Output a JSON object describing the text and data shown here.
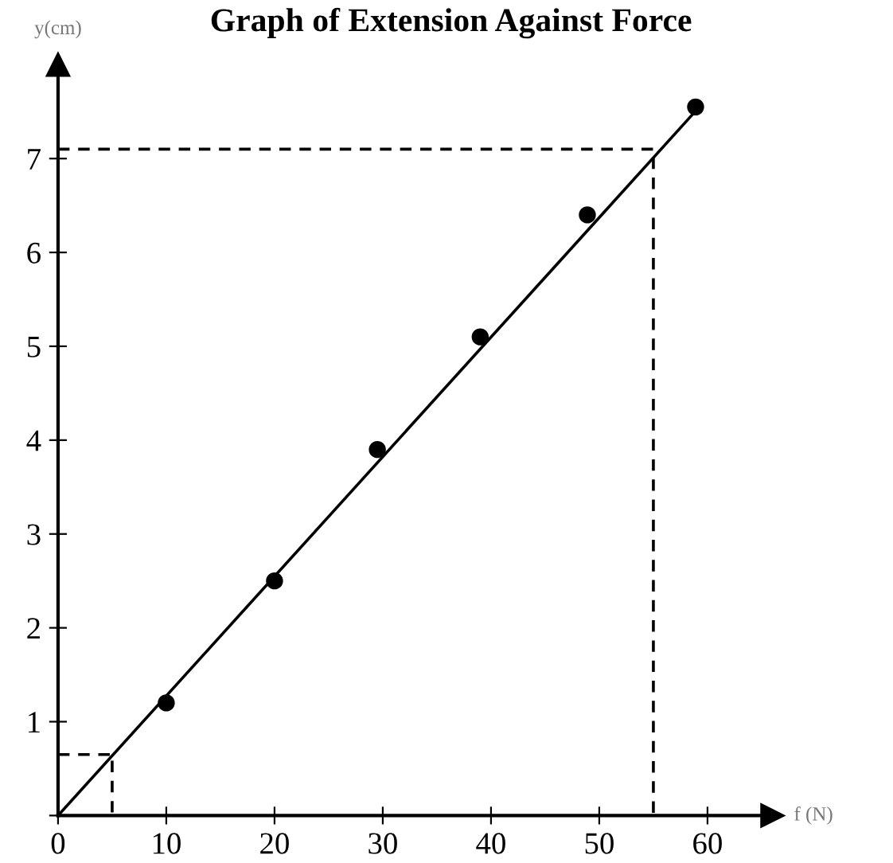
{
  "chart_data": {
    "type": "scatter",
    "title": "Graph of Extension Against Force",
    "xlabel": "f (N)",
    "ylabel": "y(cm)",
    "xlim": [
      0,
      66
    ],
    "ylim": [
      0,
      8
    ],
    "xticks": [
      0,
      10,
      20,
      30,
      40,
      50,
      60
    ],
    "yticks": [
      {
        "value": 0,
        "label": null
      },
      1,
      2,
      3,
      4,
      5,
      6,
      7
    ],
    "grid": false,
    "series": [
      {
        "color": "#000000",
        "marker": "circle",
        "x": [
          10,
          20,
          29.5,
          39,
          48.9,
          58.9
        ],
        "values": [
          1.2,
          2.5,
          3.9,
          5.1,
          6.4,
          7.55
        ]
      },
      {
        "type": "line",
        "color": "#000000",
        "line_style": "solid",
        "x": [
          0,
          59.4
        ],
        "values": [
          0,
          7.57
        ]
      },
      {
        "type": "line",
        "color": "#000000",
        "line_style": "dashed",
        "x": [
          0,
          55,
          55
        ],
        "values": [
          7.1,
          7.1,
          0
        ]
      },
      {
        "type": "line",
        "color": "#000000",
        "line_style": "dashed",
        "x": [
          0,
          5,
          5
        ],
        "values": [
          0.65,
          0.65,
          0
        ]
      }
    ]
  }
}
